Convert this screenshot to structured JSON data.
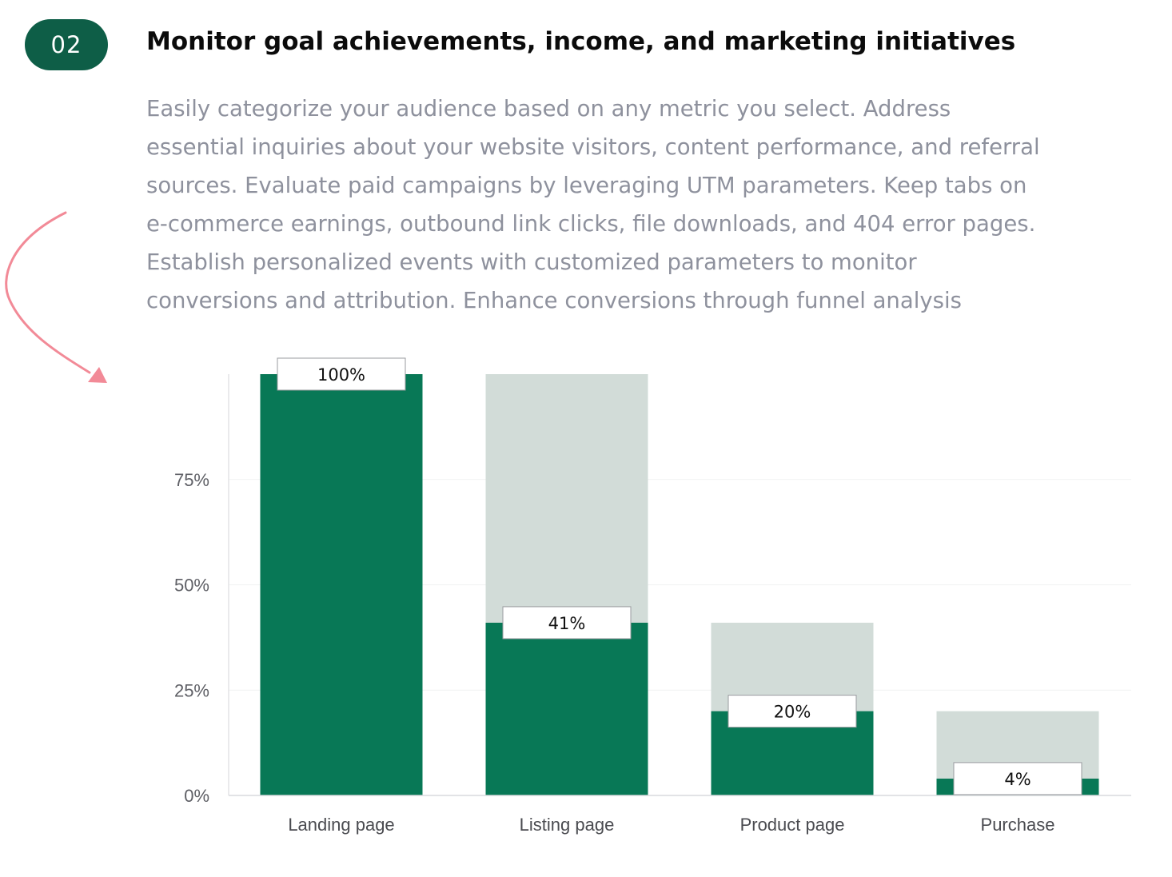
{
  "step": {
    "number": "02"
  },
  "section": {
    "title": "Monitor goal achievements, income, and marketing initiatives",
    "description_lines": [
      "Easily categorize your audience based on any metric you select. Address",
      "essential inquiries about your website visitors, content performance, and referral",
      "sources. Evaluate paid campaigns by leveraging UTM parameters. Keep tabs on",
      "e-commerce earnings, outbound link clicks, file downloads, and 404 error pages.",
      "Establish personalized events with customized parameters to monitor",
      "conversions and attribution. Enhance conversions through funnel analysis"
    ]
  },
  "colors": {
    "accent": "#0e5e47",
    "bar_fill": "#087856",
    "bar_background": "#d2dcd8",
    "arrow": "#f28a97",
    "description_text": "#8e919d"
  },
  "icons": {
    "decorative_arrow": "curved-arrow-icon"
  },
  "chart_data": {
    "type": "bar",
    "categories": [
      "Landing page",
      "Listing page",
      "Product page",
      "Purchase"
    ],
    "values": [
      100,
      41,
      20,
      4
    ],
    "previous_step_values": [
      100,
      100,
      41,
      20
    ],
    "value_labels": [
      "100%",
      "41%",
      "20%",
      "4%"
    ],
    "y_ticks": [
      0,
      25,
      50,
      75
    ],
    "y_tick_labels": [
      "0%",
      "25%",
      "50%",
      "75%"
    ],
    "ylim": [
      0,
      100
    ],
    "grid": true,
    "title": "",
    "xlabel": "",
    "ylabel": ""
  }
}
